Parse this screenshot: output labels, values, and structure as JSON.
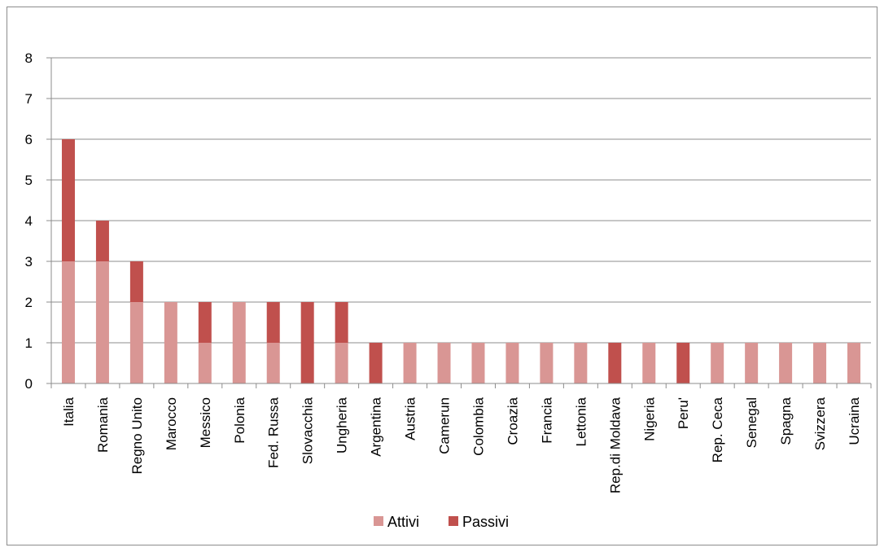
{
  "chart_data": {
    "type": "bar",
    "stacked": true,
    "categories": [
      "Italia",
      "Romania",
      "Regno Unito",
      "Marocco",
      "Messico",
      "Polonia",
      "Fed. Russa",
      "Slovacchia",
      "Ungheria",
      "Argentina",
      "Austria",
      "Camerun",
      "Colombia",
      "Croazia",
      "Francia",
      "Lettonia",
      "Rep.di Moldava",
      "Nigeria",
      "Peru'",
      "Rep. Ceca",
      "Senegal",
      "Spagna",
      "Svizzera",
      "Ucraina"
    ],
    "series": [
      {
        "name": "Attivi",
        "color": "#d99694",
        "values": [
          3,
          3,
          2,
          2,
          1,
          2,
          1,
          0,
          1,
          0,
          1,
          1,
          1,
          1,
          1,
          1,
          0,
          1,
          0,
          1,
          1,
          1,
          1,
          1
        ]
      },
      {
        "name": "Passivi",
        "color": "#c0504d",
        "values": [
          3,
          1,
          1,
          0,
          1,
          0,
          1,
          2,
          1,
          1,
          0,
          0,
          0,
          0,
          0,
          0,
          1,
          0,
          1,
          0,
          0,
          0,
          0,
          0
        ]
      }
    ],
    "y_ticks": [
      "0",
      "1",
      "2",
      "3",
      "4",
      "5",
      "6",
      "7",
      "8"
    ],
    "ylim": [
      0,
      8
    ],
    "grid": true,
    "legend_position": "bottom",
    "title": "",
    "xlabel": "",
    "ylabel": ""
  }
}
